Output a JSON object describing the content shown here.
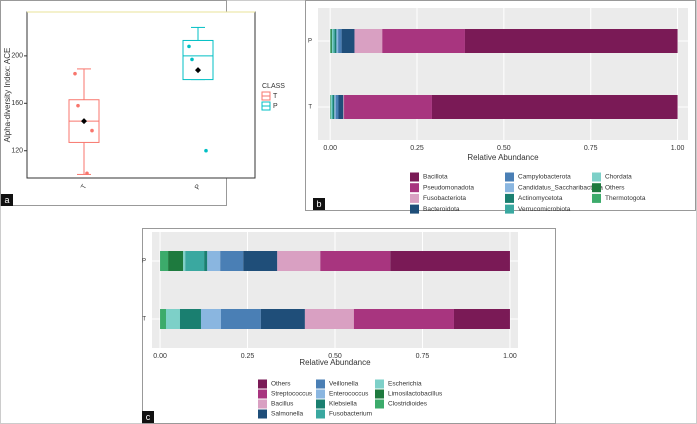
{
  "chart_data": [
    {
      "type": "box",
      "panel_label": "a",
      "y_label": "Alpha-diversity Index: ACE",
      "legend_title": "CLASS",
      "categories": [
        "T",
        "P"
      ],
      "ylim": [
        97,
        237
      ],
      "yticks": [
        120,
        160,
        200
      ],
      "series": [
        {
          "name": "T",
          "color": "#f8766d",
          "min": 100,
          "q1": 127,
          "median": 145,
          "q3": 163,
          "max": 189,
          "mean": 145,
          "points": [
            185,
            158,
            137,
            101
          ]
        },
        {
          "name": "P",
          "color": "#00bfc4",
          "min": 180,
          "q1": 180,
          "median": 200,
          "q3": 213,
          "max": 224,
          "mean": 188,
          "points": [
            208,
            197,
            120
          ]
        }
      ]
    },
    {
      "type": "stacked_barh",
      "panel_label": "b",
      "x_label": "Relative Abundance",
      "categories": [
        "P",
        "T"
      ],
      "xlim": [
        -0.035,
        1.03
      ],
      "xticks": [
        {
          "value": 0,
          "label": "0.00"
        },
        {
          "value": 0.25,
          "label": "0.25"
        },
        {
          "value": 0.5,
          "label": "0.50"
        },
        {
          "value": 0.75,
          "label": "0.75"
        },
        {
          "value": 1,
          "label": "1.00"
        }
      ],
      "grid": true,
      "series": [
        {
          "name": "Bacillota",
          "color": "#7a1a56",
          "values": [
            0.612,
            0.707
          ]
        },
        {
          "name": "Pseudomonadota",
          "color": "#a8357f",
          "values": [
            0.238,
            0.253
          ]
        },
        {
          "name": "Fusobacteriota",
          "color": "#d9a0c2",
          "values": [
            0.08,
            0.002
          ]
        },
        {
          "name": "Bacteroidota",
          "color": "#1f4e79",
          "values": [
            0.037,
            0.014
          ]
        },
        {
          "name": "Campylobacterota",
          "color": "#4a7fb5",
          "values": [
            0.01,
            0.008
          ]
        },
        {
          "name": "Candidatus_Saccharibacteria",
          "color": "#8ab6e0",
          "values": [
            0.005,
            0.004
          ]
        },
        {
          "name": "Actinomycetota",
          "color": "#1a7f70",
          "values": [
            0.005,
            0.004
          ]
        },
        {
          "name": "Verrucomicrobiota",
          "color": "#3aa8a0",
          "values": [
            0.004,
            0.003
          ]
        },
        {
          "name": "Chordata",
          "color": "#7dd0c8",
          "values": [
            0.004,
            0.003
          ]
        },
        {
          "name": "Others",
          "color": "#1e7a3e",
          "values": [
            0.003,
            0.001
          ]
        },
        {
          "name": "Thermotogota",
          "color": "#3cab6b",
          "values": [
            0.002,
            0.001
          ]
        }
      ]
    },
    {
      "type": "stacked_barh",
      "panel_label": "c",
      "x_label": "Relative Abundance",
      "categories": [
        "P",
        "T"
      ],
      "xlim": [
        -0.023,
        1.023
      ],
      "xticks": [
        {
          "value": 0,
          "label": "0.00"
        },
        {
          "value": 0.25,
          "label": "0.25"
        },
        {
          "value": 0.5,
          "label": "0.50"
        },
        {
          "value": 0.75,
          "label": "0.75"
        },
        {
          "value": 1,
          "label": "1.00"
        }
      ],
      "grid": true,
      "series": [
        {
          "name": "Others",
          "color": "#7a1a56",
          "values": [
            0.342,
            0.16
          ]
        },
        {
          "name": "Streptococcus",
          "color": "#a8357f",
          "values": [
            0.2,
            0.286
          ]
        },
        {
          "name": "Bacillus",
          "color": "#d9a0c2",
          "values": [
            0.123,
            0.14
          ]
        },
        {
          "name": "Salmonella",
          "color": "#1f4e79",
          "values": [
            0.097,
            0.126
          ]
        },
        {
          "name": "Veillonella",
          "color": "#4a7fb5",
          "values": [
            0.066,
            0.114
          ]
        },
        {
          "name": "Enterococcus",
          "color": "#8ab6e0",
          "values": [
            0.037,
            0.057
          ]
        },
        {
          "name": "Klebsiella",
          "color": "#1a7f70",
          "values": [
            0.009,
            0.06
          ]
        },
        {
          "name": "Fusobacterium",
          "color": "#3aa8a0",
          "values": [
            0.054,
            0
          ]
        },
        {
          "name": "Escherichia",
          "color": "#7dd0c8",
          "values": [
            0.006,
            0.04
          ]
        },
        {
          "name": "Limosilactobacillus",
          "color": "#1e7a3e",
          "values": [
            0.043,
            0
          ]
        },
        {
          "name": "Clostridioides",
          "color": "#3cab6b",
          "values": [
            0.023,
            0.017
          ]
        }
      ]
    }
  ]
}
